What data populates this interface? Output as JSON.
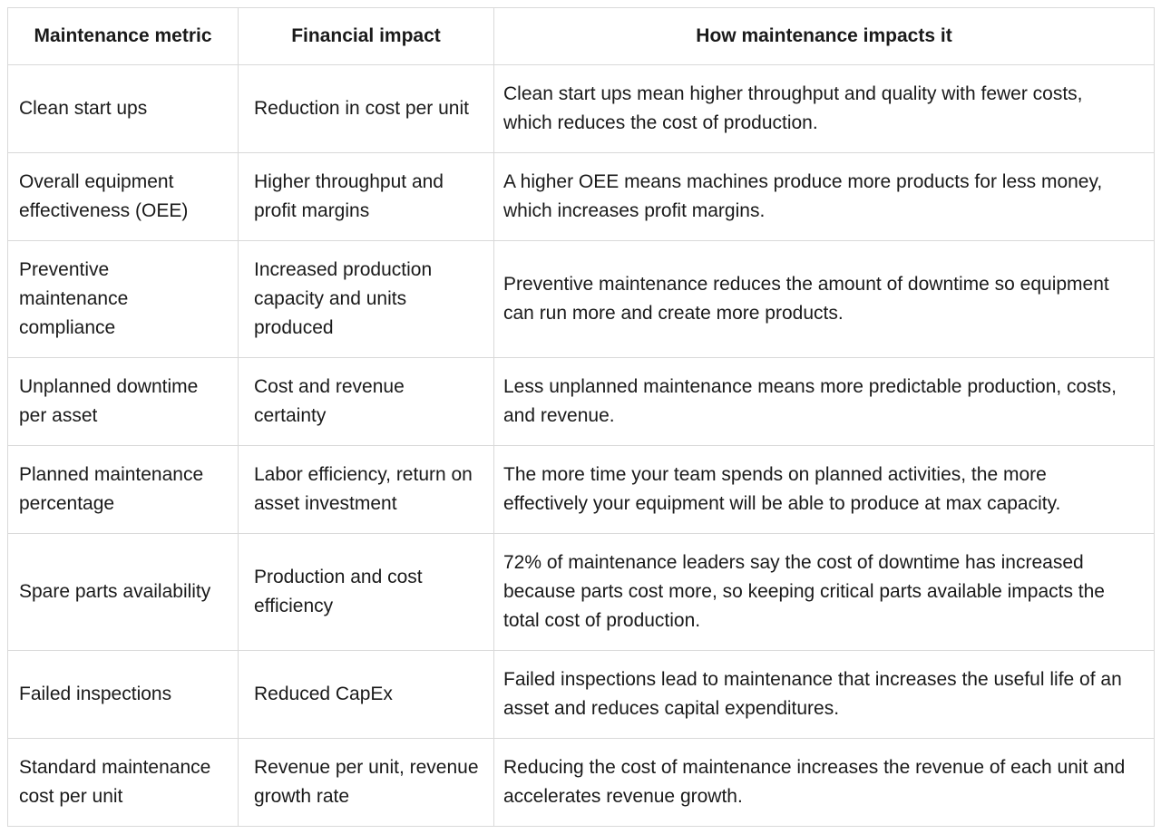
{
  "table": {
    "columns": [
      {
        "label": "Maintenance metric"
      },
      {
        "label": "Financial impact"
      },
      {
        "label": "How maintenance impacts it"
      }
    ],
    "rows": [
      {
        "metric": "Clean start ups",
        "impact": "Reduction in cost per unit",
        "how": "Clean start ups mean higher throughput and quality with fewer costs, which reduces the cost of production."
      },
      {
        "metric": "Overall equipment effectiveness (OEE)",
        "impact": "Higher throughput and profit margins",
        "how": "A higher OEE means machines produce more products for less money, which increases profit margins."
      },
      {
        "metric": "Preventive maintenance compliance",
        "impact": "Increased production capacity and units produced",
        "how": "Preventive maintenance reduces the amount of downtime so equipment can run more and create more products."
      },
      {
        "metric": "Unplanned downtime per asset",
        "impact": "Cost and revenue certainty",
        "how": "Less unplanned maintenance means more predictable production, costs, and revenue."
      },
      {
        "metric": "Planned maintenance percentage",
        "impact": "Labor efficiency, return on asset investment",
        "how": "The more time your team spends on planned activities, the more effectively your equipment will be able to produce at max capacity."
      },
      {
        "metric": "Spare parts availability",
        "impact": "Production and cost efficiency",
        "how": "72% of maintenance leaders say the cost of downtime has increased because parts cost more, so keeping critical parts available impacts the total cost of production."
      },
      {
        "metric": "Failed inspections",
        "impact": "Reduced CapEx",
        "how": "Failed inspections lead to maintenance that increases the useful life of an asset and reduces capital expenditures."
      },
      {
        "metric": "Standard maintenance cost per unit",
        "impact": "Revenue per unit, revenue growth rate",
        "how": "Reducing the cost of maintenance increases the revenue of each unit and accelerates revenue growth."
      }
    ],
    "style": {
      "border_color": "#d9d9d9",
      "text_color": "#1a1a1a",
      "background_color": "#ffffff"
    }
  }
}
